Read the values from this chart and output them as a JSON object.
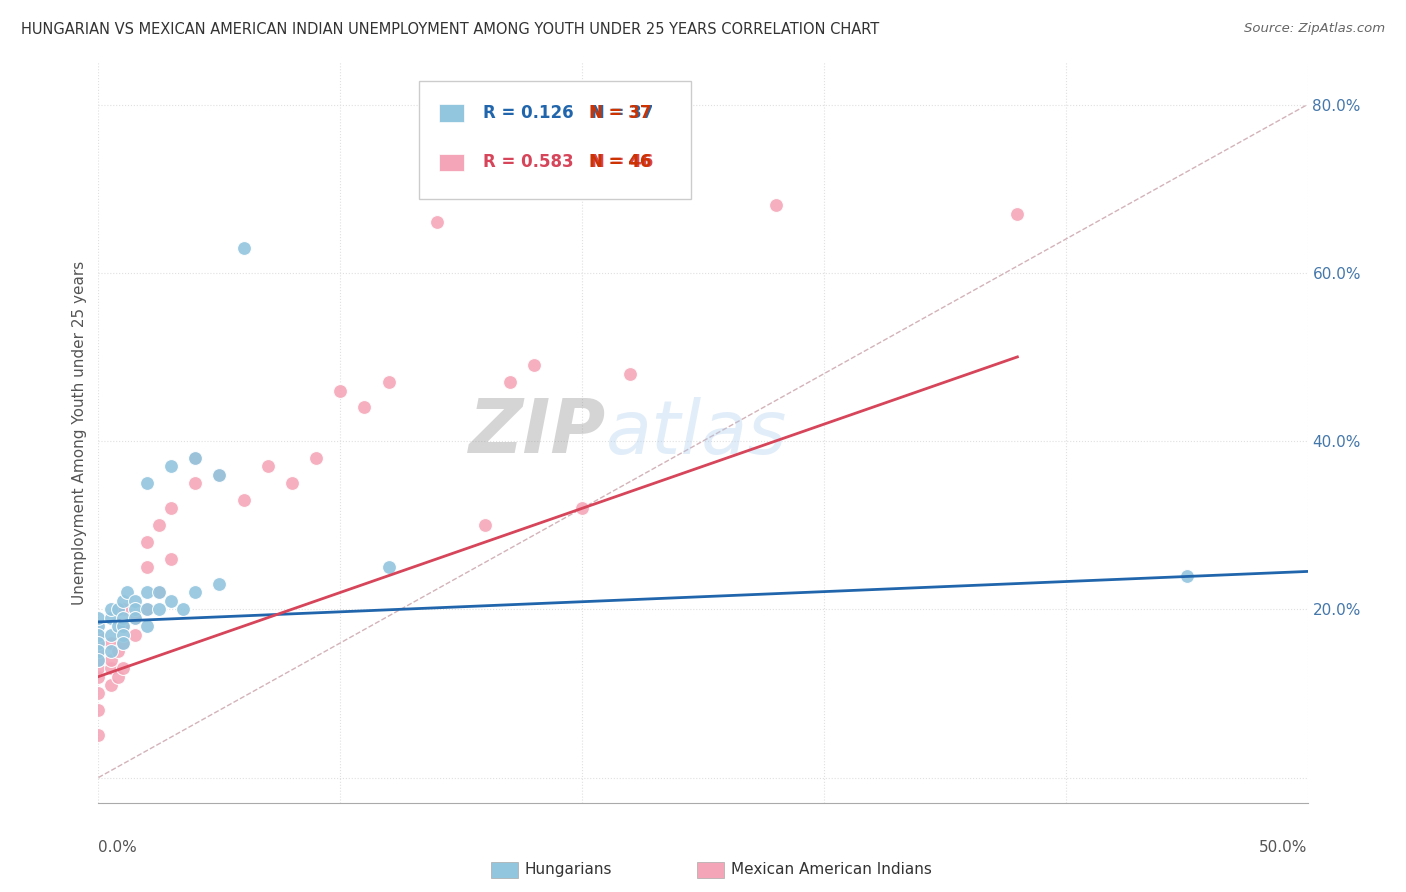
{
  "title": "HUNGARIAN VS MEXICAN AMERICAN INDIAN UNEMPLOYMENT AMONG YOUTH UNDER 25 YEARS CORRELATION CHART",
  "source": "Source: ZipAtlas.com",
  "ylabel": "Unemployment Among Youth under 25 years",
  "yticks": [
    0.0,
    0.2,
    0.4,
    0.6,
    0.8
  ],
  "ytick_labels": [
    "",
    "20.0%",
    "40.0%",
    "60.0%",
    "80.0%"
  ],
  "xlim": [
    0.0,
    0.5
  ],
  "ylim": [
    -0.03,
    0.85
  ],
  "legend_r1": "R = 0.126",
  "legend_n1": "N = 37",
  "legend_r2": "R = 0.583",
  "legend_n2": "N = 46",
  "blue_color": "#92c5de",
  "pink_color": "#f4a6b8",
  "blue_line_color": "#2166ac",
  "pink_line_color": "#d6455a",
  "diag_color": "#c8a0a8",
  "background_color": "#ffffff",
  "grid_color": "#e0e0e0",
  "watermark_zip": "ZIP",
  "watermark_atlas": "atlas",
  "hungarian_x": [
    0.0,
    0.0,
    0.0,
    0.0,
    0.0,
    0.0,
    0.005,
    0.005,
    0.005,
    0.005,
    0.008,
    0.008,
    0.01,
    0.01,
    0.01,
    0.01,
    0.01,
    0.012,
    0.015,
    0.015,
    0.015,
    0.02,
    0.02,
    0.02,
    0.02,
    0.025,
    0.025,
    0.03,
    0.03,
    0.035,
    0.04,
    0.04,
    0.05,
    0.05,
    0.06,
    0.12,
    0.45
  ],
  "hungarian_y": [
    0.18,
    0.19,
    0.17,
    0.16,
    0.15,
    0.14,
    0.19,
    0.2,
    0.17,
    0.15,
    0.2,
    0.18,
    0.19,
    0.18,
    0.17,
    0.21,
    0.16,
    0.22,
    0.21,
    0.2,
    0.19,
    0.35,
    0.22,
    0.2,
    0.18,
    0.22,
    0.2,
    0.37,
    0.21,
    0.2,
    0.38,
    0.22,
    0.36,
    0.23,
    0.63,
    0.25,
    0.24
  ],
  "mexican_x": [
    0.0,
    0.0,
    0.0,
    0.0,
    0.0,
    0.0,
    0.0,
    0.0,
    0.0,
    0.005,
    0.005,
    0.005,
    0.005,
    0.008,
    0.008,
    0.01,
    0.01,
    0.01,
    0.01,
    0.015,
    0.015,
    0.02,
    0.02,
    0.02,
    0.025,
    0.025,
    0.03,
    0.03,
    0.04,
    0.04,
    0.05,
    0.06,
    0.07,
    0.08,
    0.09,
    0.1,
    0.11,
    0.12,
    0.14,
    0.16,
    0.17,
    0.18,
    0.2,
    0.22,
    0.28,
    0.38
  ],
  "mexican_y": [
    0.05,
    0.08,
    0.1,
    0.12,
    0.13,
    0.14,
    0.15,
    0.16,
    0.17,
    0.11,
    0.13,
    0.14,
    0.16,
    0.12,
    0.15,
    0.13,
    0.16,
    0.18,
    0.2,
    0.17,
    0.19,
    0.2,
    0.25,
    0.28,
    0.22,
    0.3,
    0.26,
    0.32,
    0.35,
    0.38,
    0.36,
    0.33,
    0.37,
    0.35,
    0.38,
    0.46,
    0.44,
    0.47,
    0.66,
    0.3,
    0.47,
    0.49,
    0.32,
    0.48,
    0.68,
    0.67
  ],
  "blue_trend_x0": 0.0,
  "blue_trend_x1": 0.5,
  "blue_trend_y0": 0.185,
  "blue_trend_y1": 0.245,
  "pink_trend_x0": 0.0,
  "pink_trend_x1": 0.38,
  "pink_trend_y0": 0.12,
  "pink_trend_y1": 0.5
}
